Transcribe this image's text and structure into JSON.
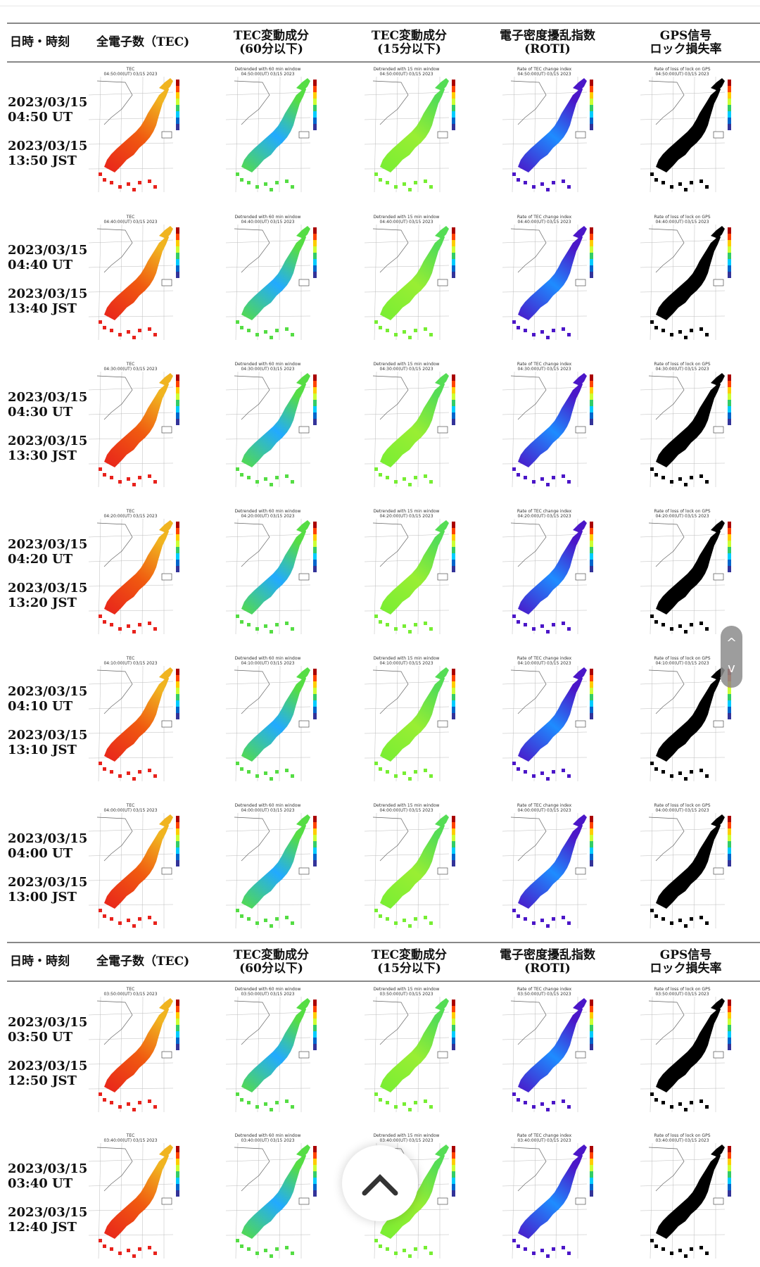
{
  "headers": [
    "日時・時刻",
    "全電子数（TEC)",
    "TEC変動成分\n(60分以下)",
    "TEC変動成分\n(15分以下)",
    "電子密度擾乱指数\n(ROTI)",
    "GPS信号\nロック損失率"
  ],
  "map_titles": {
    "tec": "TEC",
    "d60": "Detrended with 60 min window",
    "d15": "Detrended with 15 min window",
    "roti": "Rate of TEC change index",
    "lol": "Rate of loss of lock on GPS"
  },
  "rows": [
    {
      "utc_date": "2023/03/15",
      "utc_time": "04:50 UT",
      "jst_date": "2023/03/15",
      "jst_time": "13:50 JST",
      "caption": "04:50:00(UT) 03/15 2023"
    },
    {
      "utc_date": "2023/03/15",
      "utc_time": "04:40 UT",
      "jst_date": "2023/03/15",
      "jst_time": "13:40 JST",
      "caption": "04:40:00(UT) 03/15 2023"
    },
    {
      "utc_date": "2023/03/15",
      "utc_time": "04:30 UT",
      "jst_date": "2023/03/15",
      "jst_time": "13:30 JST",
      "caption": "04:30:00(UT) 03/15 2023"
    },
    {
      "utc_date": "2023/03/15",
      "utc_time": "04:20 UT",
      "jst_date": "2023/03/15",
      "jst_time": "13:20 JST",
      "caption": "04:20:00(UT) 03/15 2023"
    },
    {
      "utc_date": "2023/03/15",
      "utc_time": "04:10 UT",
      "jst_date": "2023/03/15",
      "jst_time": "13:10 JST",
      "caption": "04:10:00(UT) 03/15 2023"
    },
    {
      "utc_date": "2023/03/15",
      "utc_time": "04:00 UT",
      "jst_date": "2023/03/15",
      "jst_time": "13:00 JST",
      "caption": "04:00:00(UT) 03/15 2023"
    },
    {
      "utc_date": "2023/03/15",
      "utc_time": "03:50 UT",
      "jst_date": "2023/03/15",
      "jst_time": "12:50 JST",
      "caption": "03:50:00(UT) 03/15 2023"
    },
    {
      "utc_date": "2023/03/15",
      "utc_time": "03:40 UT",
      "jst_date": "2023/03/15",
      "jst_time": "12:40 JST",
      "caption": "03:40:00(UT) 03/15 2023"
    }
  ],
  "colors": {
    "tec_main": "#e8221c",
    "tec_north": "#f0b420",
    "d60_main": "#55dd44",
    "d60_alt": "#22aaff",
    "d15_main": "#77ee33",
    "roti_main": "#4b16c8",
    "roti_alt": "#1e8cff",
    "lol_main": "#000000"
  },
  "controls": {
    "scroll_up": "^",
    "scroll_down": "v",
    "back_to_top": "^"
  }
}
